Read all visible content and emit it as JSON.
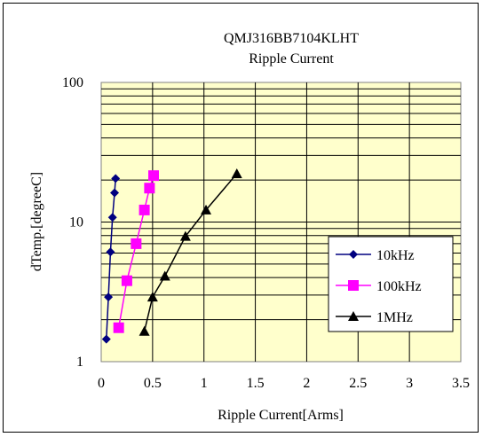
{
  "chart_data": {
    "type": "line",
    "title": "QMJ316BB7104KLHT",
    "subtitle": "Ripple Current",
    "xlabel": "Ripple Current[Arms]",
    "ylabel": "dTemp.[degreeC]",
    "xlim": [
      0,
      3.5
    ],
    "ylim": [
      1,
      100
    ],
    "yscale": "log",
    "x_ticks": [
      "0",
      "0.5",
      "1",
      "1.5",
      "2",
      "2.5",
      "3",
      "3.5"
    ],
    "y_ticks": [
      "1",
      "10",
      "100"
    ],
    "grid": true,
    "legend_position": "right",
    "plot_background": "#ffffcc",
    "series": [
      {
        "name": "10kHz",
        "color": "#000080",
        "marker": "diamond",
        "x": [
          0.05,
          0.07,
          0.09,
          0.11,
          0.13,
          0.14
        ],
        "y": [
          1.45,
          2.9,
          6.1,
          10.8,
          16.2,
          20.5
        ]
      },
      {
        "name": "100kHz",
        "color": "#ff00ff",
        "marker": "square",
        "x": [
          0.17,
          0.25,
          0.34,
          0.42,
          0.47,
          0.51
        ],
        "y": [
          1.75,
          3.8,
          7.0,
          12.2,
          17.5,
          21.5
        ]
      },
      {
        "name": "1MHz",
        "color": "#000000",
        "marker": "triangle",
        "x": [
          0.42,
          0.5,
          0.62,
          0.82,
          1.02,
          1.32
        ],
        "y": [
          1.65,
          2.9,
          4.1,
          7.9,
          12.2,
          22.2
        ]
      }
    ]
  }
}
